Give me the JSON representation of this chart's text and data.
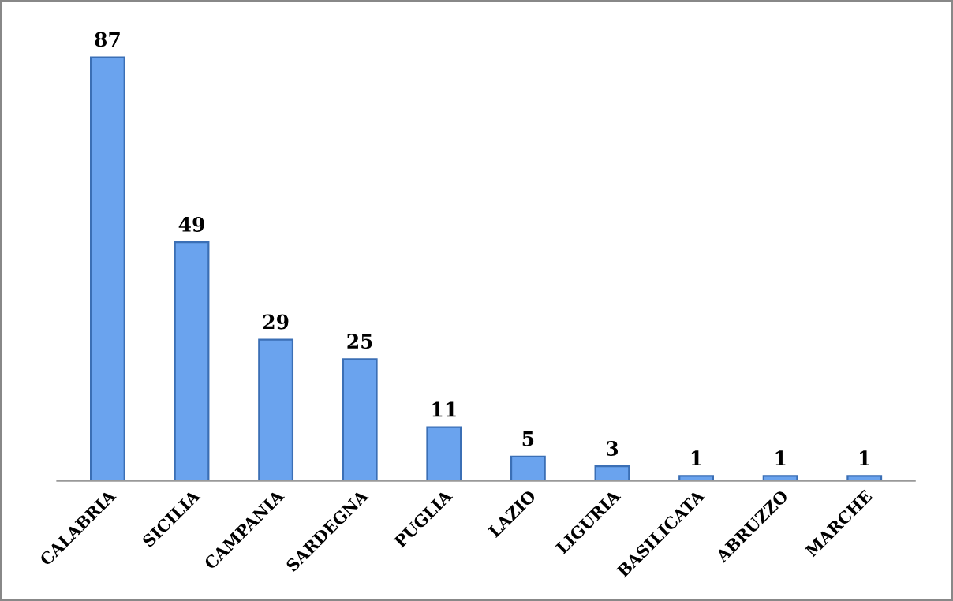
{
  "chart_data": {
    "type": "bar",
    "categories": [
      "CALABRIA",
      "SICILIA",
      "CAMPANIA",
      "SARDEGNA",
      "PUGLIA",
      "LAZIO",
      "LIGURIA",
      "BASILICATA",
      "ABRUZZO",
      "MARCHE"
    ],
    "values": [
      87,
      49,
      29,
      25,
      11,
      5,
      3,
      1,
      1,
      1
    ],
    "color": "#6aa3ee",
    "data_labels": true,
    "grid": false,
    "legend": false
  }
}
